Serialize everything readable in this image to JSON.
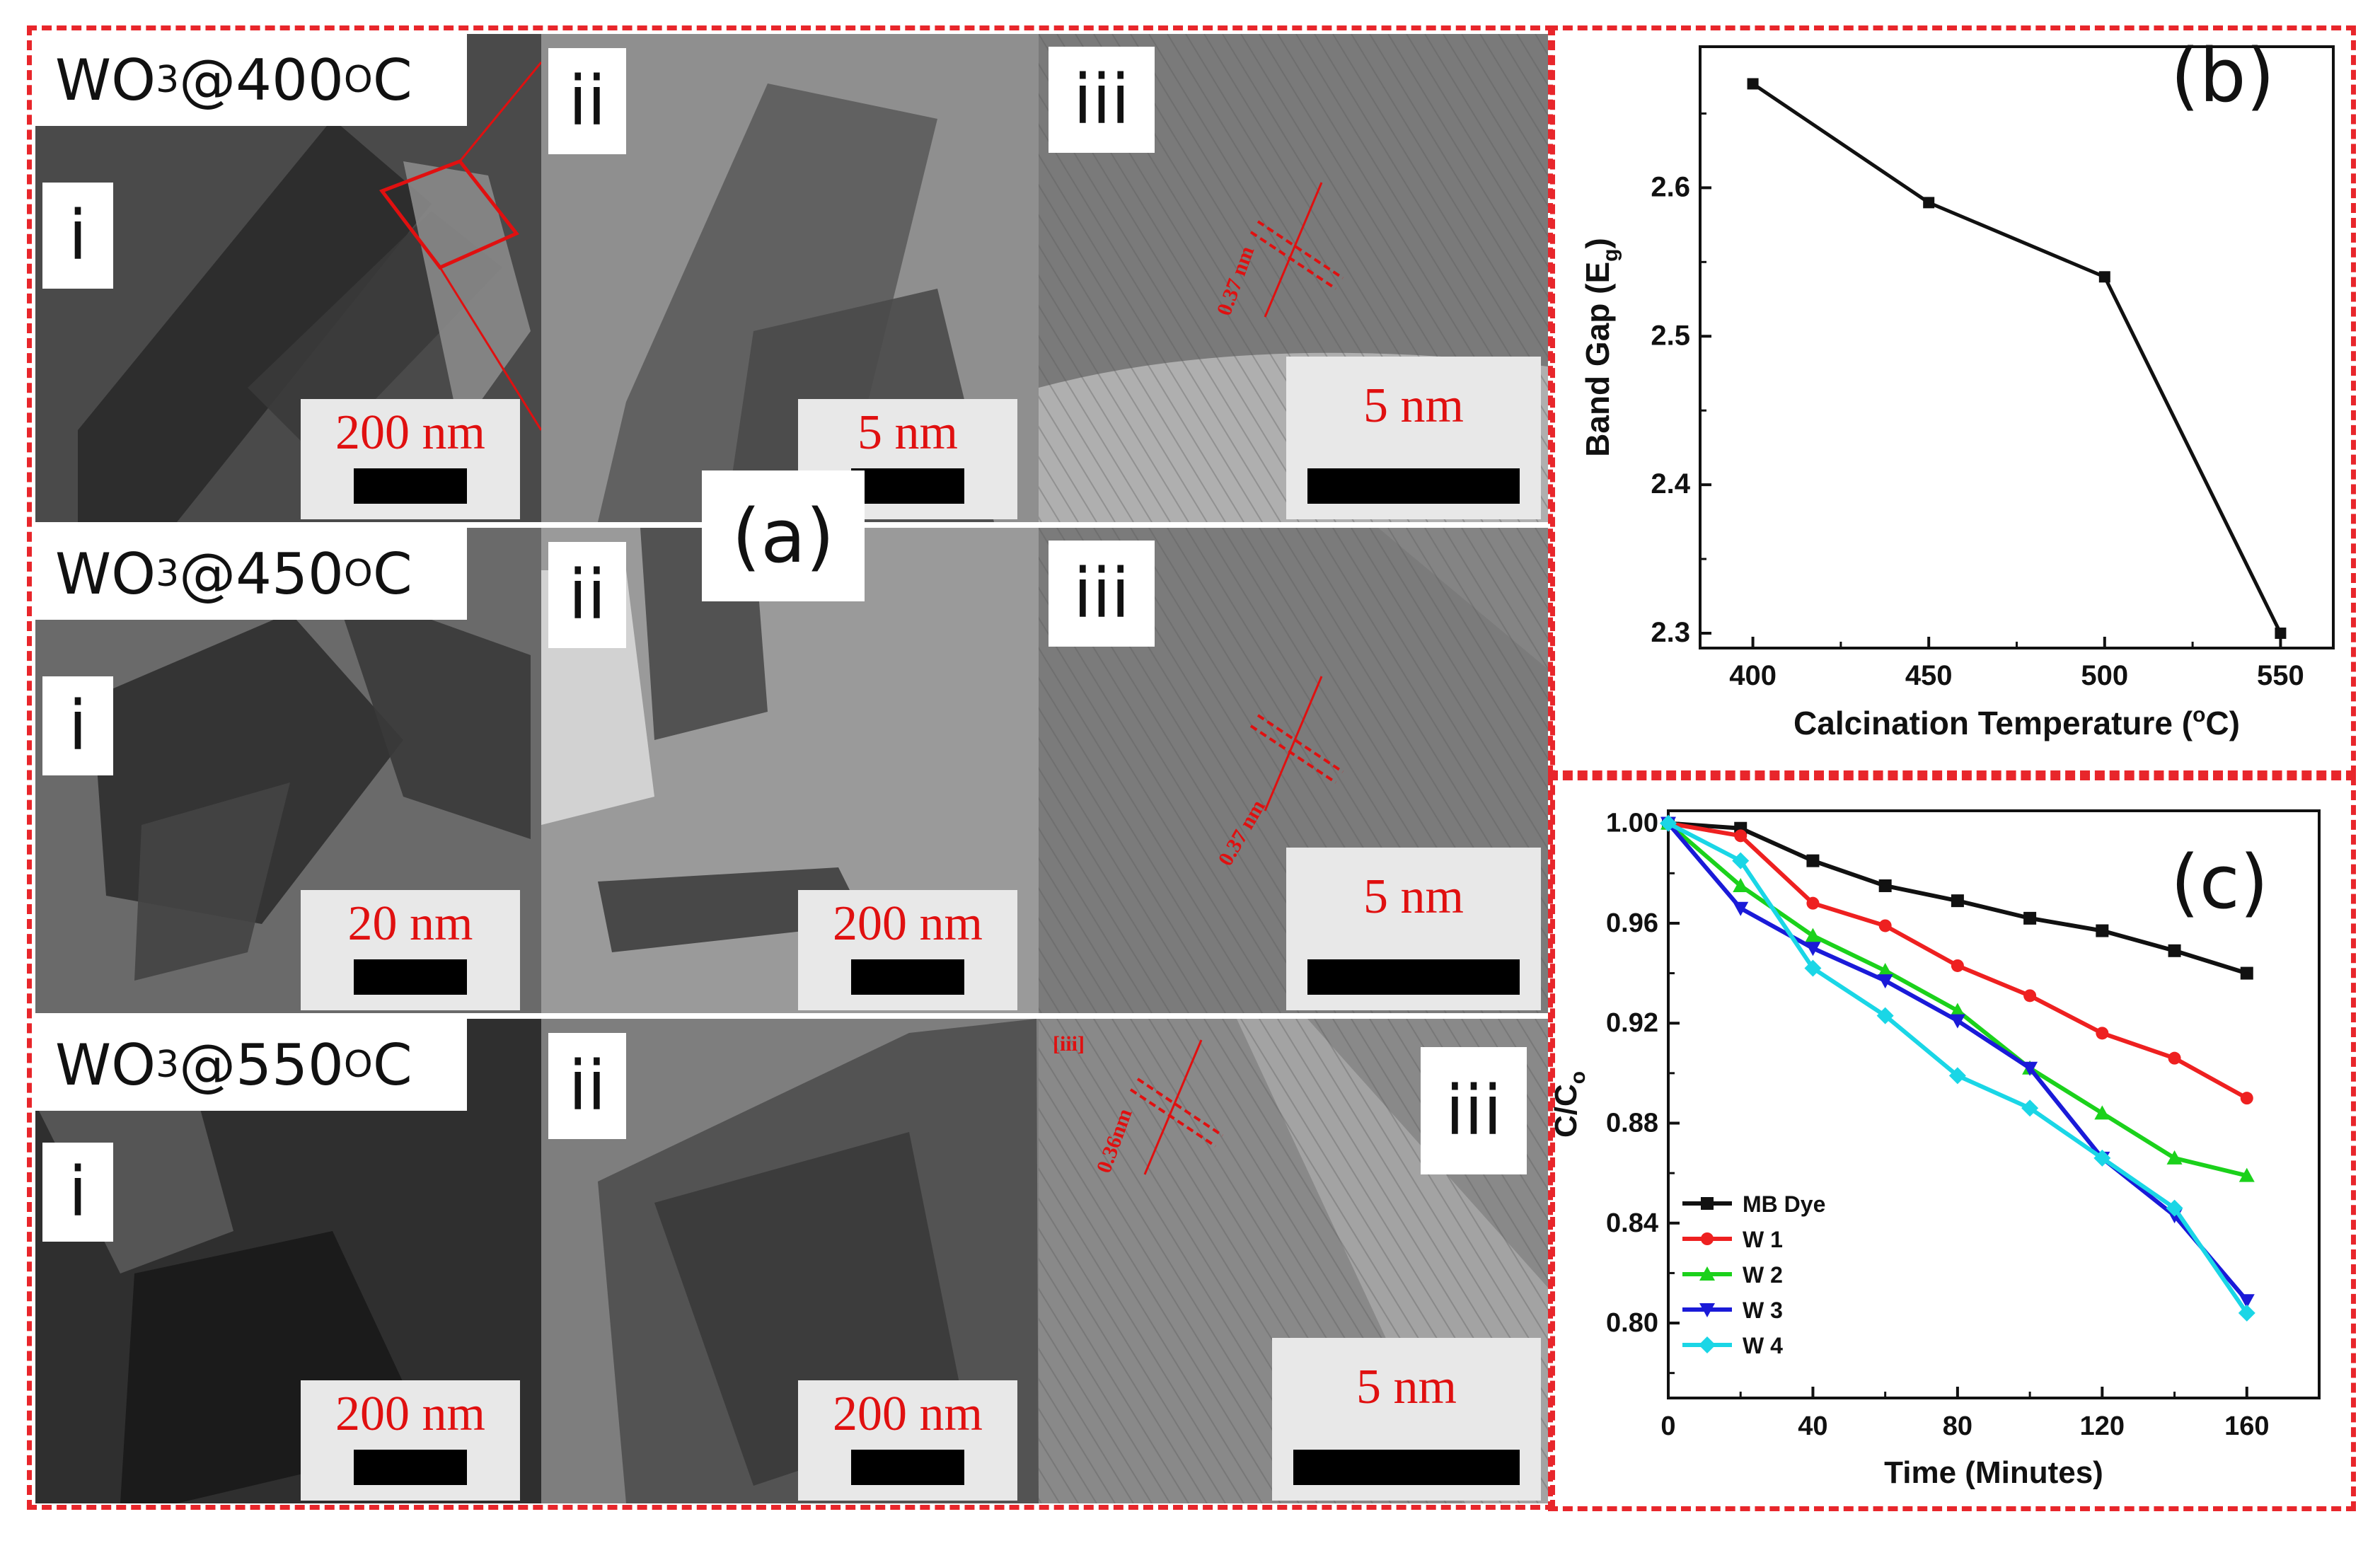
{
  "figure": {
    "panel_a_label": "(a)",
    "panel_b_label": "(b)",
    "panel_c_label": "(c)",
    "rows": [
      {
        "title_main": "WO",
        "title_sub": "3",
        "title_rest": "@400 ",
        "title_sup": "O",
        "title_unit": "C",
        "tiles": [
          {
            "roman": "i",
            "scale": "200 nm"
          },
          {
            "roman": "ii",
            "scale": "5 nm"
          },
          {
            "roman": "iii",
            "scale": "5 nm",
            "fringe": "0.37 nm"
          }
        ]
      },
      {
        "title_main": "WO",
        "title_sub": "3",
        "title_rest": "@450 ",
        "title_sup": "O",
        "title_unit": "C",
        "tiles": [
          {
            "roman": "i",
            "scale": "20 nm"
          },
          {
            "roman": "ii",
            "scale": "200 nm"
          },
          {
            "roman": "iii",
            "scale": "5 nm",
            "fringe": "0.37 nm"
          }
        ]
      },
      {
        "title_main": "WO",
        "title_sub": "3",
        "title_rest": "@550 ",
        "title_sup": "O",
        "title_unit": "C",
        "tiles": [
          {
            "roman": "i",
            "scale": "200 nm"
          },
          {
            "roman": "ii",
            "scale": "200 nm"
          },
          {
            "roman": "iii",
            "scale": "5 nm",
            "fringe": "0.36nm",
            "tag": "[iii]"
          }
        ]
      }
    ]
  },
  "chart_data": [
    {
      "type": "line",
      "panel": "(b)",
      "xlabel": "Calcination Temperature (",
      "xlabel_sup": "o",
      "xlabel_end": "C)",
      "ylabel": "Band Gap (E",
      "ylabel_sub": "g",
      "ylabel_end": ")",
      "x": [
        400,
        450,
        500,
        550
      ],
      "y": [
        2.67,
        2.59,
        2.54,
        2.3
      ],
      "xlim": [
        385,
        565
      ],
      "ylim": [
        2.29,
        2.695
      ],
      "xticks": [
        "400",
        "450",
        "500",
        "550"
      ],
      "yticks": [
        "2.3",
        "2.4",
        "2.5",
        "2.6"
      ],
      "color": "#111111"
    },
    {
      "type": "line",
      "panel": "(c)",
      "xlabel": "Time (Minutes)",
      "ylabel": "C/C",
      "ylabel_sub": "o",
      "x": [
        0,
        20,
        40,
        60,
        80,
        100,
        120,
        140,
        160
      ],
      "xlim": [
        0,
        180
      ],
      "ylim": [
        0.77,
        1.005
      ],
      "xticks": [
        "0",
        "40",
        "80",
        "120",
        "160"
      ],
      "yticks": [
        "0.80",
        "0.84",
        "0.88",
        "0.92",
        "0.96",
        "1.00"
      ],
      "series": [
        {
          "name": "MB Dye",
          "color": "#111111",
          "marker": "square",
          "values": [
            1.0,
            0.998,
            0.985,
            0.975,
            0.969,
            0.962,
            0.957,
            0.949,
            0.94
          ]
        },
        {
          "name": "W 1",
          "color": "#ee2020",
          "marker": "circle",
          "values": [
            1.0,
            0.995,
            0.968,
            0.959,
            0.943,
            0.931,
            0.916,
            0.906,
            0.89
          ]
        },
        {
          "name": "W 2",
          "color": "#1bd11b",
          "marker": "triangle-up",
          "values": [
            1.0,
            0.975,
            0.955,
            0.941,
            0.925,
            0.902,
            0.884,
            0.866,
            0.859
          ]
        },
        {
          "name": "W 3",
          "color": "#1a1ad8",
          "marker": "triangle-down",
          "values": [
            1.0,
            0.966,
            0.95,
            0.937,
            0.921,
            0.902,
            0.866,
            0.843,
            0.809
          ]
        },
        {
          "name": "W 4",
          "color": "#1ad6e6",
          "marker": "diamond",
          "values": [
            1.0,
            0.985,
            0.942,
            0.923,
            0.899,
            0.886,
            0.866,
            0.846,
            0.804
          ]
        }
      ]
    }
  ]
}
